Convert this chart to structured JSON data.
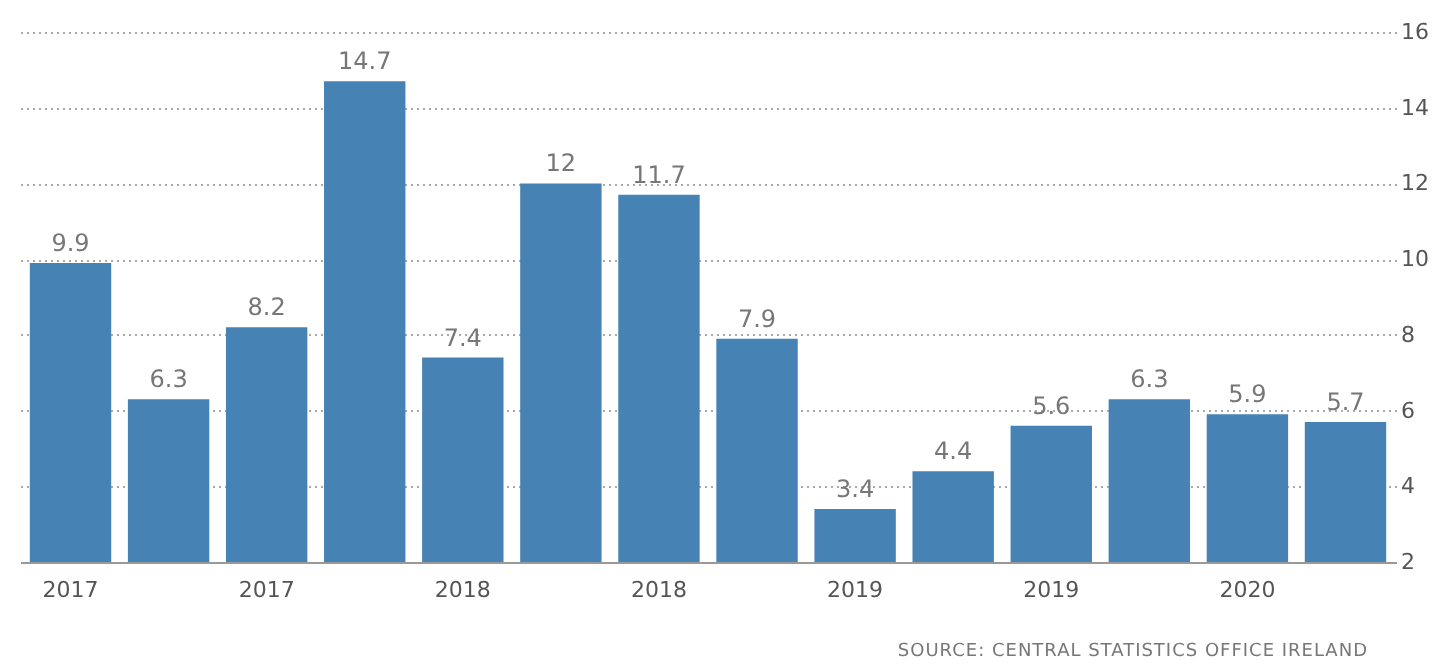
{
  "chart_data": {
    "type": "bar",
    "categories": [
      "2017",
      null,
      "2017",
      null,
      "2018",
      null,
      "2018",
      null,
      "2019",
      null,
      "2019",
      null,
      "2020",
      null
    ],
    "values": [
      9.9,
      6.3,
      8.2,
      14.7,
      7.4,
      12,
      11.7,
      7.9,
      3.4,
      4.4,
      5.6,
      6.3,
      5.9,
      5.7
    ],
    "color": "#4682b4",
    "ylim": [
      2,
      16
    ],
    "yticks": [
      2,
      4,
      6,
      8,
      10,
      12,
      14,
      16
    ],
    "grid": "y",
    "data_labels": true,
    "annotations": [
      "SOURCE: CENTRAL STATISTICS OFFICE IRELAND"
    ]
  }
}
